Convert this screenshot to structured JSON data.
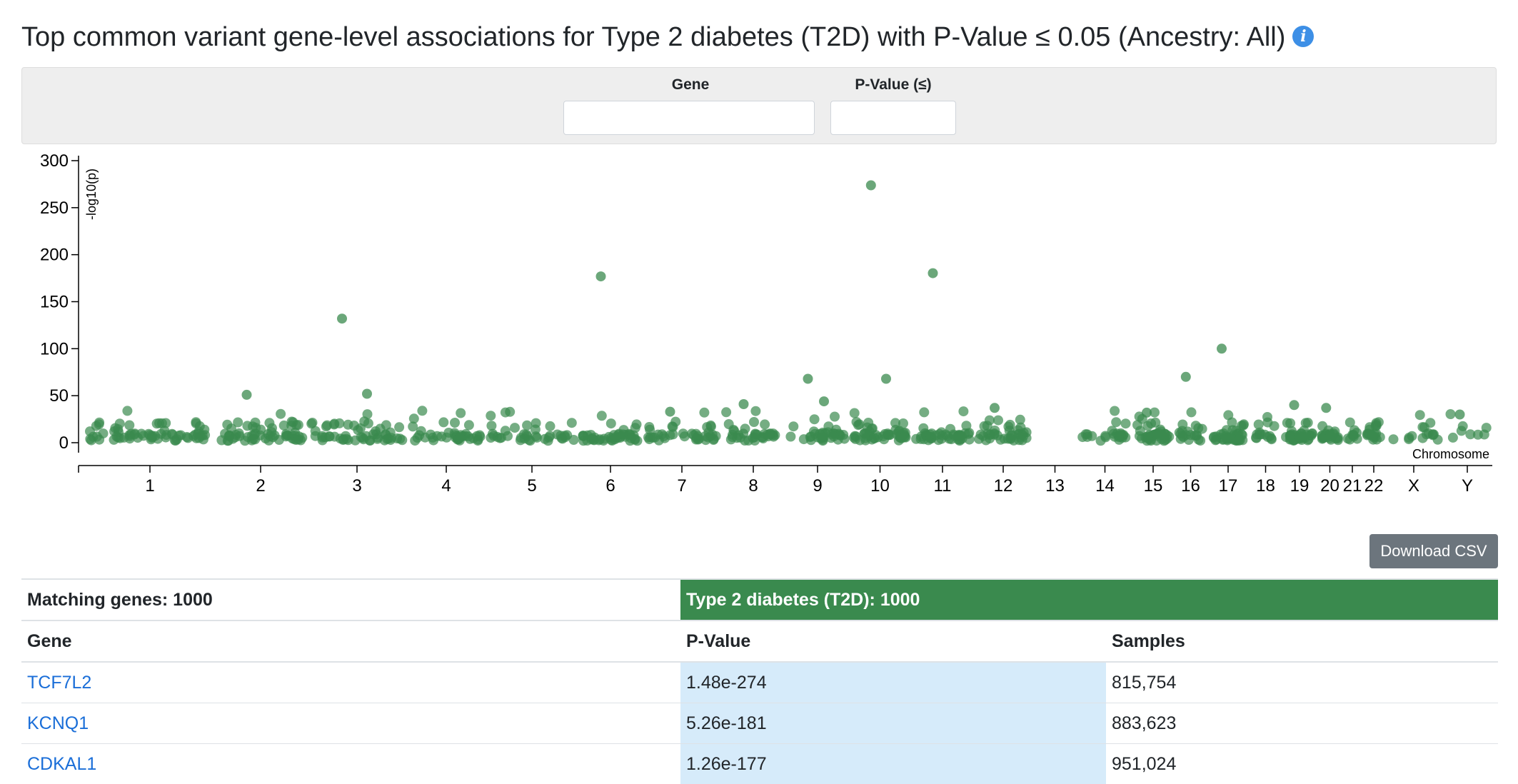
{
  "page": {
    "title": "Top common variant gene-level associations for Type 2 diabetes (T2D) with P-Value ≤ 0.05 (Ancestry: All)",
    "info_icon": "info-icon",
    "info_glyph": "i"
  },
  "filters": {
    "gene_label": "Gene",
    "gene_value": "",
    "pvalue_label": "P-Value (≤)",
    "pvalue_value": ""
  },
  "chart_data": {
    "type": "scatter",
    "title": "",
    "ylabel": "-log10(p)",
    "xlabel": "Chromosome",
    "ylim": [
      0,
      300
    ],
    "yticks": [
      0,
      50,
      100,
      150,
      200,
      250,
      300
    ],
    "chromosomes": [
      "1",
      "2",
      "3",
      "4",
      "5",
      "6",
      "7",
      "8",
      "9",
      "10",
      "11",
      "12",
      "13",
      "14",
      "15",
      "16",
      "17",
      "18",
      "19",
      "20",
      "21",
      "22",
      "X",
      "Y"
    ],
    "point_color": "#3a8a4e",
    "highlighted_points": [
      {
        "chromosome": "10",
        "gene": "TCF7L2",
        "y": 273.8
      },
      {
        "chromosome": "11",
        "gene": "KCNQ1",
        "y": 180.3
      },
      {
        "chromosome": "6",
        "gene": "CDKAL1",
        "y": 176.9
      },
      {
        "chromosome": "3",
        "y": 132
      },
      {
        "chromosome": "17",
        "y": 100
      },
      {
        "chromosome": "16",
        "y": 70
      },
      {
        "chromosome": "9",
        "y": 68
      },
      {
        "chromosome": "10",
        "y": 68
      },
      {
        "chromosome": "3",
        "y": 52
      },
      {
        "chromosome": "2",
        "y": 51
      },
      {
        "chromosome": "9",
        "y": 44
      },
      {
        "chromosome": "8",
        "y": 41
      },
      {
        "chromosome": "19",
        "y": 40
      },
      {
        "chromosome": "20",
        "y": 37
      },
      {
        "chromosome": "12",
        "y": 37
      },
      {
        "chromosome": "7",
        "y": 33
      },
      {
        "chromosome": "15",
        "y": 32
      },
      {
        "chromosome": "Y",
        "y": 30
      }
    ],
    "note_bulk": "about 1000 genes total; most points lie between 0 and 30"
  },
  "download": {
    "label": "Download CSV"
  },
  "table": {
    "summary_label": "Matching genes: 1000",
    "phenotype_label": "Type 2 diabetes (T2D): 1000",
    "columns": [
      "Gene",
      "P-Value",
      "Samples"
    ],
    "rows": [
      {
        "gene": "TCF7L2",
        "pvalue": "1.48e-274",
        "samples": "815,754"
      },
      {
        "gene": "KCNQ1",
        "pvalue": "5.26e-181",
        "samples": "883,623"
      },
      {
        "gene": "CDKAL1",
        "pvalue": "1.26e-177",
        "samples": "951,024"
      }
    ]
  }
}
